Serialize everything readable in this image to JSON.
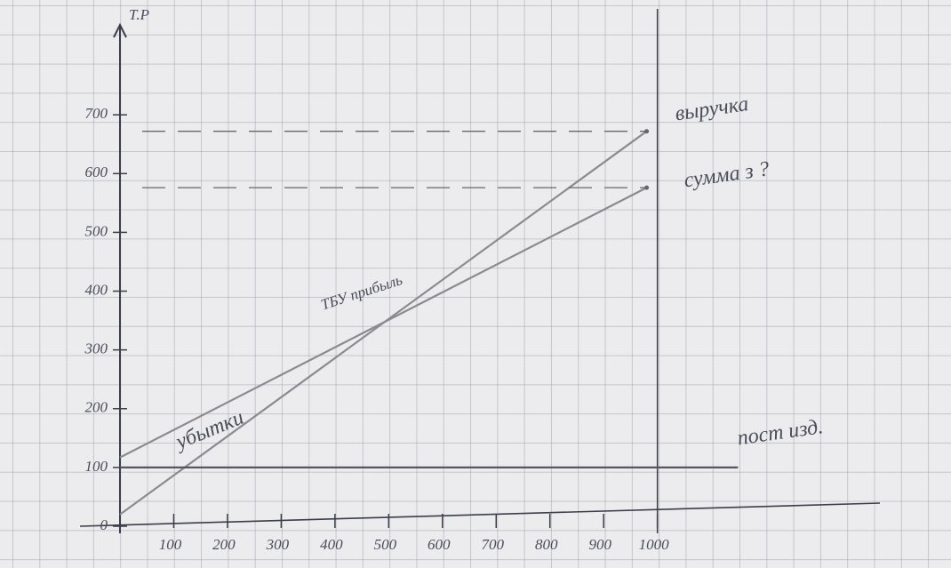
{
  "chart_data": {
    "type": "line",
    "y_label": "Т.Р",
    "xlim": [
      0,
      1500
    ],
    "ylim": [
      0,
      850
    ],
    "xticks": [
      100,
      200,
      300,
      400,
      500,
      600,
      700,
      800,
      900,
      1000
    ],
    "yticks": [
      0,
      100,
      200,
      300,
      400,
      500,
      600,
      700
    ],
    "series": [
      {
        "name": "выручка",
        "color": "#8a8a90",
        "x": [
          0,
          980
        ],
        "values": [
          20,
          672
        ]
      },
      {
        "name": "сумма з ?",
        "color": "#8a8a90",
        "x": [
          0,
          980
        ],
        "values": [
          117,
          576
        ]
      },
      {
        "name": "пост изд.",
        "color": "#55565e",
        "x": [
          0,
          1150
        ],
        "values": [
          100,
          100
        ]
      }
    ],
    "annotations": [
      "убытки",
      "ТБУ прибыль"
    ]
  }
}
